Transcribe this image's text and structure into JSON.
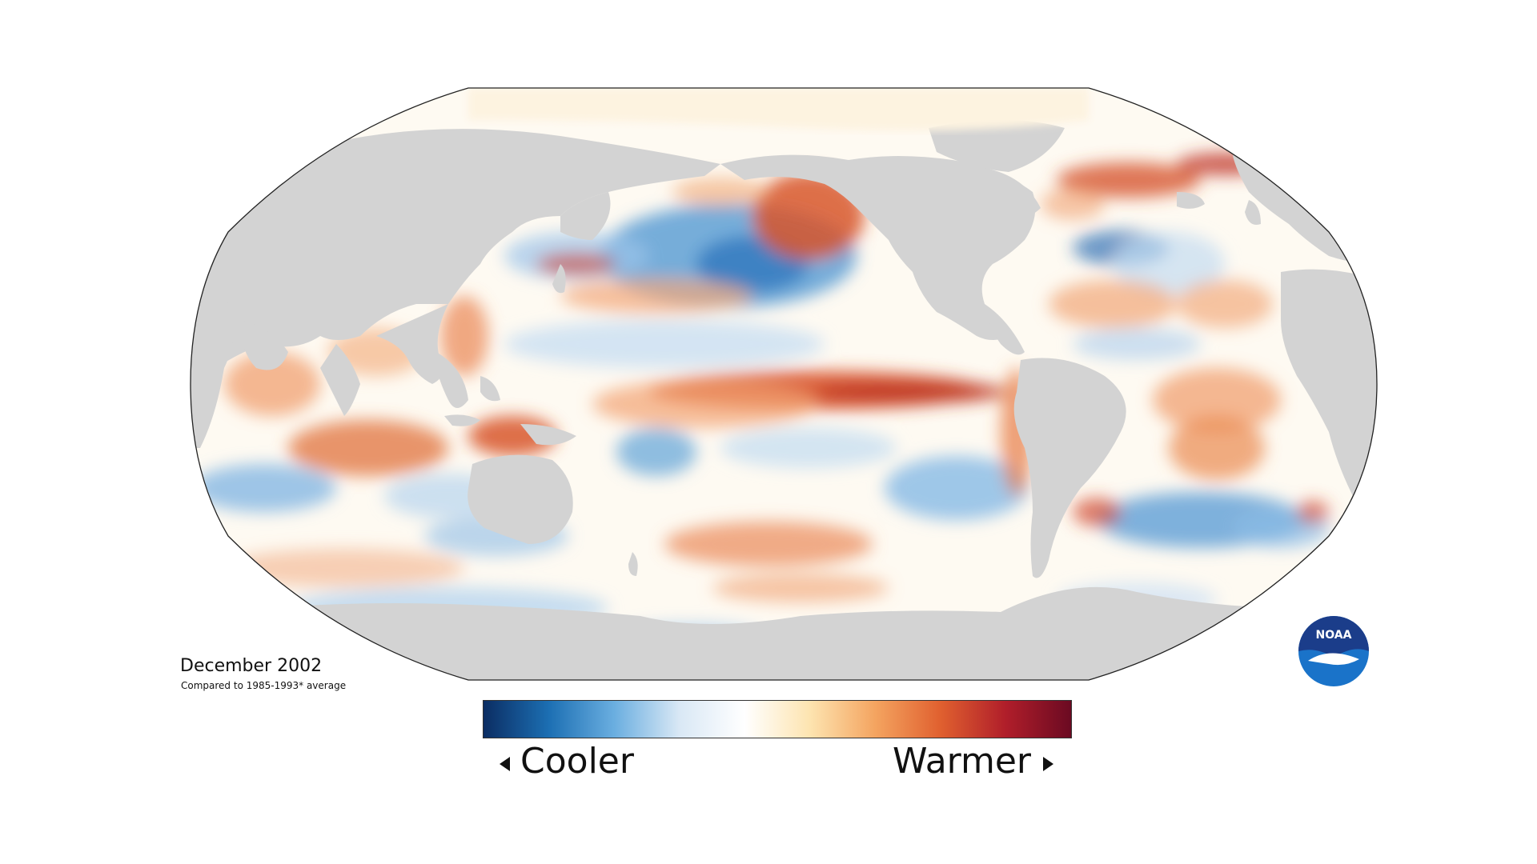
{
  "caption": {
    "title": "December 2002",
    "subtitle": "Compared to 1985-1993* average"
  },
  "legend": {
    "low_label": "Cooler",
    "high_label": "Warmer",
    "colors": [
      "#0b2d63",
      "#1c6fb3",
      "#6aaee0",
      "#d9e8f5",
      "#ffffff",
      "#fde4b0",
      "#f4a460",
      "#e0602f",
      "#b01e2a",
      "#6b0a22"
    ]
  },
  "logo": {
    "text": "NOAA",
    "icon": "noaa-logo"
  },
  "map_colors": {
    "land": "#d3d3d3",
    "ocean_neutral": "#ffffff",
    "border": "#222222"
  }
}
